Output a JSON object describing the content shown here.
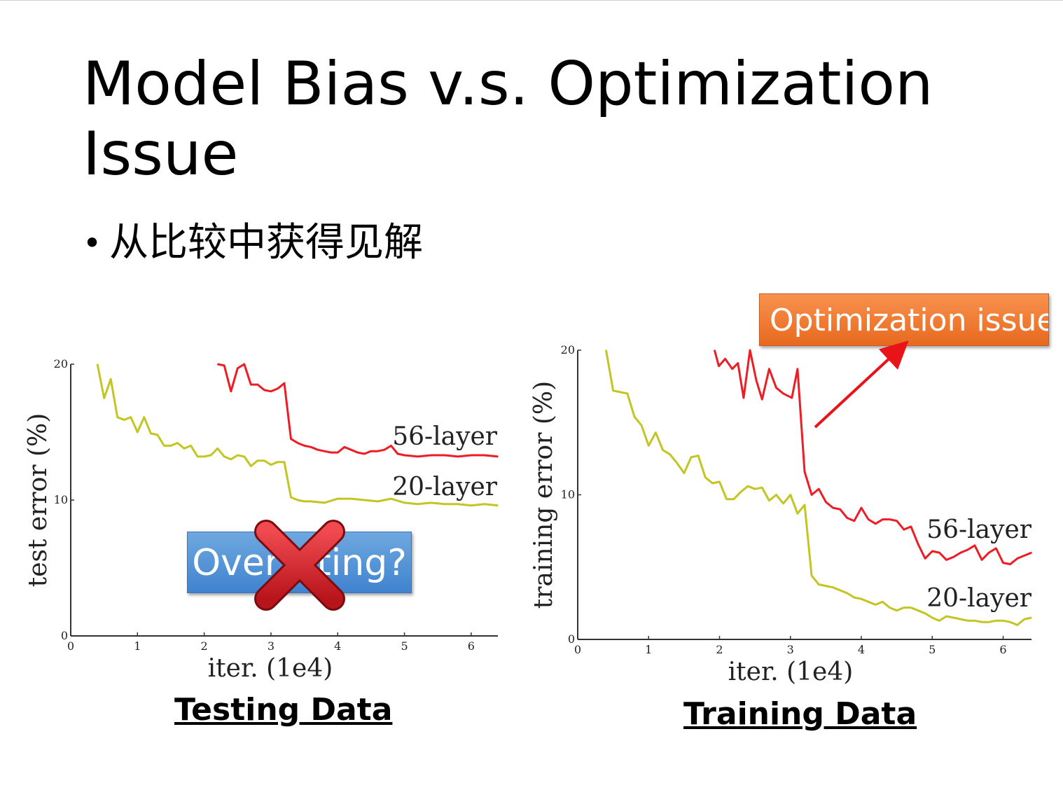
{
  "slide": {
    "title": "Model Bias v.s. Optimization Issue",
    "bullet": "从比较中获得见解",
    "bullet_symbol": "•"
  },
  "captions": {
    "testing": "Testing Data",
    "training": "Training Data"
  },
  "callouts": {
    "overfitting": "Overfitting?",
    "optimization": "Optimization issue",
    "overfitting_color": "#4a8fd8",
    "optimization_color": "#ee7a33",
    "cross_color": "#d41f26",
    "arrow_color": "#e8141a"
  },
  "chart_data": [
    {
      "type": "line",
      "title": "",
      "xlabel": "iter. (1e4)",
      "ylabel": "test error (%)",
      "xlim": [
        0,
        6.4
      ],
      "ylim": [
        0,
        20
      ],
      "xticks": [
        "0",
        "1",
        "2",
        "3",
        "4",
        "5",
        "6"
      ],
      "yticks": [
        "0",
        "10",
        "20"
      ],
      "series": [
        {
          "name": "56-layer",
          "color": "#ee1c24",
          "x": [
            2.2,
            2.3,
            2.4,
            2.5,
            2.6,
            2.7,
            2.8,
            2.9,
            3.0,
            3.1,
            3.2,
            3.3,
            3.4,
            3.5,
            3.6,
            3.7,
            3.8,
            3.9,
            4.0,
            4.1,
            4.2,
            4.3,
            4.4,
            4.5,
            4.6,
            4.7,
            4.8,
            4.9,
            5.0,
            5.2,
            5.4,
            5.6,
            5.8,
            6.0,
            6.2,
            6.4
          ],
          "y": [
            20.0,
            19.9,
            18.0,
            19.7,
            20.0,
            18.5,
            18.5,
            18.1,
            18.0,
            18.2,
            18.6,
            14.5,
            14.2,
            14.0,
            13.9,
            13.7,
            13.6,
            13.5,
            13.5,
            13.9,
            13.7,
            13.5,
            13.4,
            13.6,
            13.6,
            13.7,
            14.0,
            13.4,
            13.3,
            13.2,
            13.3,
            13.3,
            13.2,
            13.3,
            13.3,
            13.2
          ]
        },
        {
          "name": "20-layer",
          "color": "#c3c522",
          "x": [
            0.4,
            0.5,
            0.6,
            0.7,
            0.8,
            0.9,
            1.0,
            1.1,
            1.2,
            1.3,
            1.4,
            1.5,
            1.6,
            1.7,
            1.8,
            1.9,
            2.0,
            2.1,
            2.2,
            2.3,
            2.4,
            2.5,
            2.6,
            2.7,
            2.8,
            2.9,
            3.0,
            3.1,
            3.2,
            3.3,
            3.4,
            3.5,
            3.6,
            3.8,
            4.0,
            4.2,
            4.4,
            4.6,
            4.8,
            5.0,
            5.2,
            5.4,
            5.6,
            5.8,
            6.0,
            6.2,
            6.4
          ],
          "y": [
            20.0,
            17.5,
            18.9,
            16.1,
            15.9,
            16.1,
            15.0,
            16.1,
            14.9,
            14.8,
            14.0,
            14.0,
            14.2,
            13.8,
            14.0,
            13.2,
            13.2,
            13.3,
            13.8,
            13.2,
            13.0,
            13.3,
            13.2,
            12.5,
            12.9,
            12.9,
            12.6,
            12.8,
            12.8,
            10.2,
            10.0,
            9.9,
            9.9,
            9.8,
            10.1,
            10.1,
            10.0,
            9.9,
            10.1,
            9.8,
            9.7,
            9.8,
            9.7,
            9.7,
            9.6,
            9.7,
            9.6
          ]
        }
      ]
    },
    {
      "type": "line",
      "title": "",
      "xlabel": "iter. (1e4)",
      "ylabel": "training error (%)",
      "xlim": [
        0,
        6.4
      ],
      "ylim": [
        0,
        20
      ],
      "xticks": [
        "0",
        "1",
        "2",
        "3",
        "4",
        "5",
        "6"
      ],
      "yticks": [
        "0",
        "10",
        "20"
      ],
      "series": [
        {
          "name": "56-layer",
          "color": "#ee1c24",
          "x": [
            1.93,
            1.99,
            2.08,
            2.18,
            2.26,
            2.34,
            2.43,
            2.52,
            2.6,
            2.7,
            2.8,
            2.9,
            3.02,
            3.1,
            3.2,
            3.3,
            3.4,
            3.5,
            3.6,
            3.7,
            3.8,
            3.9,
            4.0,
            4.1,
            4.2,
            4.3,
            4.4,
            4.5,
            4.6,
            4.7,
            4.8,
            4.9,
            5.0,
            5.1,
            5.2,
            5.3,
            5.4,
            5.5,
            5.6,
            5.7,
            5.8,
            5.9,
            6.0,
            6.1,
            6.2,
            6.3,
            6.4
          ],
          "y": [
            20.0,
            18.9,
            19.4,
            18.7,
            19.1,
            16.7,
            20.0,
            17.9,
            16.6,
            18.7,
            17.4,
            17.0,
            16.7,
            18.7,
            11.6,
            10.0,
            10.4,
            9.5,
            9.1,
            9.0,
            8.4,
            8.2,
            9.1,
            8.3,
            8.0,
            8.3,
            8.3,
            8.2,
            7.6,
            7.8,
            6.6,
            5.6,
            6.1,
            6.0,
            5.5,
            5.7,
            6.0,
            6.2,
            6.5,
            5.5,
            6.0,
            6.3,
            5.3,
            5.2,
            5.6,
            5.8,
            6.0
          ]
        },
        {
          "name": "20-layer",
          "color": "#c3c522",
          "x": [
            0.4,
            0.5,
            0.6,
            0.7,
            0.8,
            0.9,
            1.0,
            1.1,
            1.2,
            1.3,
            1.4,
            1.5,
            1.6,
            1.7,
            1.8,
            1.9,
            2.0,
            2.1,
            2.2,
            2.3,
            2.4,
            2.5,
            2.6,
            2.7,
            2.8,
            2.9,
            3.0,
            3.1,
            3.2,
            3.3,
            3.4,
            3.5,
            3.6,
            3.7,
            3.8,
            3.9,
            4.0,
            4.1,
            4.2,
            4.3,
            4.4,
            4.5,
            4.6,
            4.7,
            4.8,
            4.9,
            5.0,
            5.1,
            5.2,
            5.3,
            5.4,
            5.5,
            5.6,
            5.7,
            5.8,
            5.9,
            6.0,
            6.1,
            6.2,
            6.3,
            6.4
          ],
          "y": [
            20.0,
            17.2,
            17.1,
            17.0,
            15.4,
            14.8,
            13.4,
            14.3,
            13.1,
            12.8,
            12.2,
            11.5,
            12.6,
            12.7,
            11.2,
            10.8,
            10.9,
            9.7,
            9.7,
            10.2,
            10.6,
            10.4,
            10.5,
            9.6,
            10.0,
            9.4,
            10.0,
            8.7,
            9.3,
            4.4,
            3.8,
            3.7,
            3.6,
            3.4,
            3.2,
            2.9,
            2.8,
            2.6,
            2.4,
            2.6,
            2.2,
            2.0,
            2.2,
            2.2,
            2.0,
            1.8,
            1.5,
            1.3,
            1.6,
            1.5,
            1.4,
            1.3,
            1.3,
            1.2,
            1.2,
            1.3,
            1.3,
            1.2,
            1.0,
            1.4,
            1.5
          ]
        }
      ]
    }
  ]
}
